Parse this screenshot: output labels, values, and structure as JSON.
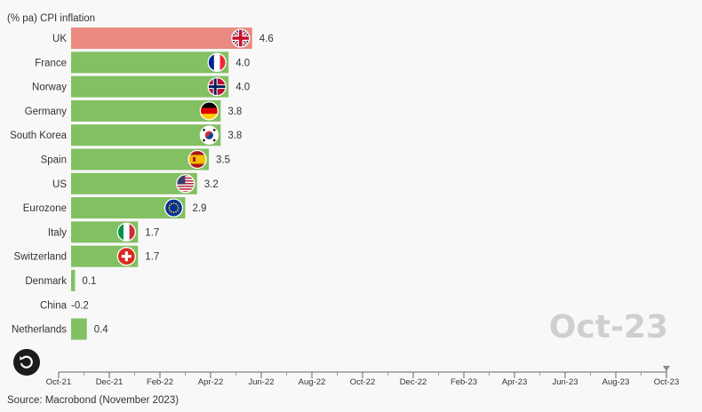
{
  "chart_data": {
    "type": "bar",
    "orientation": "horizontal",
    "ylabel": "(% pa) CPI inflation",
    "categories": [
      "UK",
      "France",
      "Norway",
      "Germany",
      "South Korea",
      "Spain",
      "US",
      "Eurozone",
      "Italy",
      "Switzerland",
      "Denmark",
      "China",
      "Netherlands"
    ],
    "values": [
      4.6,
      4.0,
      4.0,
      3.8,
      3.8,
      3.5,
      3.2,
      2.9,
      1.7,
      1.7,
      0.1,
      -0.2,
      0.4
    ],
    "value_labels": [
      "4.6",
      "4.0",
      "4.0",
      "3.8",
      "3.8",
      "3.5",
      "3.2",
      "2.9",
      "1.7",
      "1.7",
      "0.1",
      "-0.2",
      "0.4"
    ],
    "bar_colors": [
      "#ea8a80",
      "#82c062",
      "#82c062",
      "#82c062",
      "#82c062",
      "#82c062",
      "#82c062",
      "#82c062",
      "#82c062",
      "#82c062",
      "#82c062",
      "#82c062",
      "#82c062"
    ],
    "flag_icons": [
      "uk-flag-icon",
      "france-flag-icon",
      "norway-flag-icon",
      "germany-flag-icon",
      "south-korea-flag-icon",
      "spain-flag-icon",
      "us-flag-icon",
      "eurozone-flag-icon",
      "italy-flag-icon",
      "switzerland-flag-icon",
      "",
      "",
      ""
    ],
    "timeline_ticks": [
      "Oct-21",
      "Dec-21",
      "Feb-22",
      "Apr-22",
      "Jun-22",
      "Aug-22",
      "Oct-22",
      "Dec-22",
      "Feb-23",
      "Apr-23",
      "Jun-23",
      "Aug-23",
      "Oct-23"
    ],
    "current_period": "Oct-23",
    "source": "Source: Macrobond (November 2023)"
  },
  "controls": {
    "replay_icon": "replay-icon"
  }
}
